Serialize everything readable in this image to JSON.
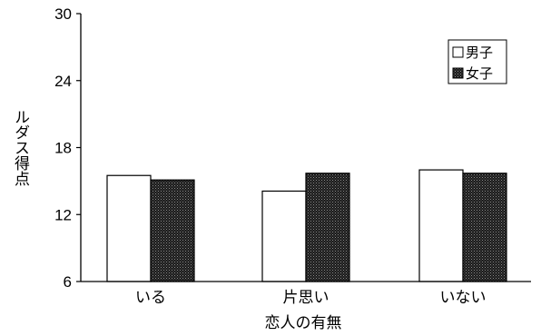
{
  "chart_data": {
    "type": "bar",
    "categories": [
      "いる",
      "片思い",
      "いない"
    ],
    "series": [
      {
        "name": "男子",
        "values": [
          15.5,
          14.1,
          16.0
        ]
      },
      {
        "name": "女子",
        "values": [
          15.1,
          15.7,
          15.7
        ]
      }
    ],
    "title": "",
    "xlabel": "恋人の有無",
    "ylabel": "ルダス得点",
    "ylim": [
      6,
      30
    ],
    "yticks": [
      6,
      12,
      18,
      24,
      30
    ],
    "grid": false,
    "legend": "top-right",
    "colors": {
      "男子": "#ffffff",
      "女子": "#1a1a1a"
    }
  }
}
